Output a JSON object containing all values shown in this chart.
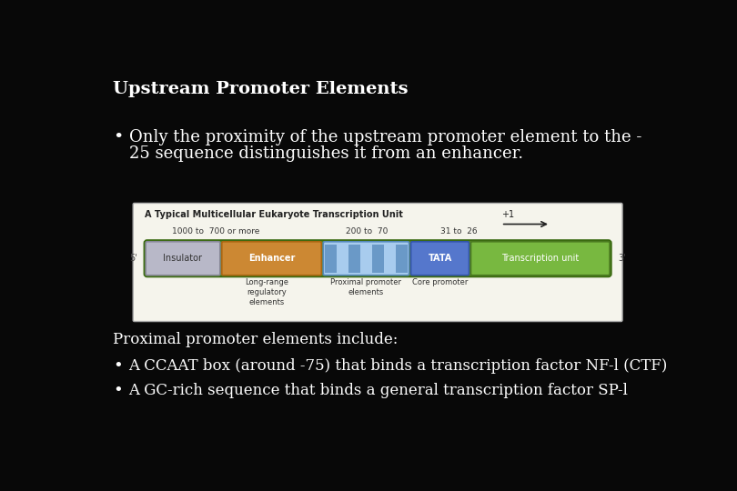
{
  "background_color": "#080808",
  "title": "Upstream Promoter Elements",
  "title_color": "#ffffff",
  "title_fontsize": 14,
  "bullet1_line1": "Only the proximity of the upstream promoter element to the -",
  "bullet1_line2": "25 sequence distinguishes it from an enhancer.",
  "bullet_fontsize": 13,
  "bullet_color": "#ffffff",
  "proximal_header": "Proximal promoter elements include:",
  "proximal_fontsize": 12,
  "proximal_color": "#ffffff",
  "bullet2": "A CCAAT box (around -75) that binds a transcription factor NF-l (CTF)",
  "bullet3": "A GC-rich sequence that binds a general transcription factor SP-l",
  "diagram_bg": "#f5f4ec",
  "diagram_border": "#aaaaaa",
  "diagram_title": "A Typical Multicellular Eukaryote Transcription Unit",
  "diagram_label1": "1000 to  700 or more",
  "diagram_label2": "200 to  70",
  "diagram_label3": "31 to  26",
  "diagram_below1": "Long-range\nregulatory\nelements",
  "diagram_below2": "Proximal promoter\nelements",
  "diagram_below3": "Core promoter",
  "insulator_color": "#b8b8c8",
  "insulator_border": "#888898",
  "enhancer_color": "#cc8833",
  "enhancer_border": "#aa6611",
  "proximal_light": "#a8ccee",
  "proximal_dark": "#5588bb",
  "tata_color": "#5577cc",
  "tata_border": "#3355aa",
  "transcription_color": "#78b840",
  "transcription_border": "#4a7a20",
  "outer_green": "#5a8a28",
  "outer_green_border": "#3a6a10",
  "prime5_color": "#444444",
  "prime3_color": "#444444",
  "label_color": "#333333",
  "arrow_color": "#222222"
}
